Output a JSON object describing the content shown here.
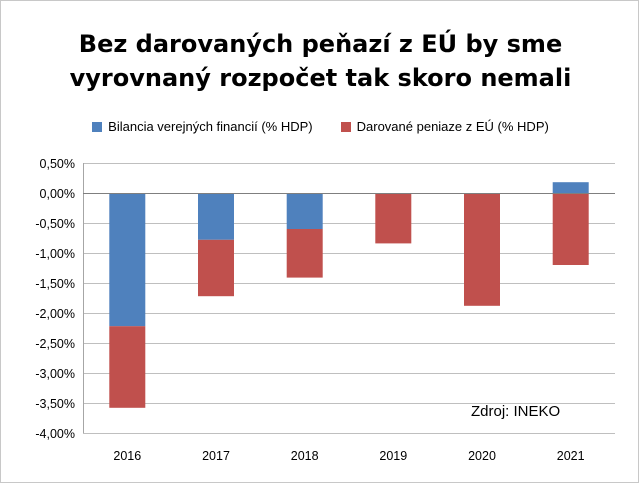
{
  "chart_data": {
    "type": "bar",
    "stacked": true,
    "title_lines": [
      "Bez darovaných peňazí z EÚ by sme",
      "vyrovnaný rozpočet tak skoro nemali"
    ],
    "categories": [
      "2016",
      "2017",
      "2018",
      "2019",
      "2020",
      "2021"
    ],
    "series": [
      {
        "name": "Bilancia verejných financií (% HDP)",
        "color": "#4f81bd",
        "values": [
          -2.22,
          -0.78,
          -0.6,
          0.0,
          0.0,
          0.18
        ]
      },
      {
        "name": "Darované peniaze z EÚ (% HDP)",
        "color": "#c0504d",
        "values": [
          -1.36,
          -0.94,
          -0.81,
          -0.84,
          -1.88,
          -1.2
        ]
      }
    ],
    "ylim": [
      -4.0,
      0.5
    ],
    "ytick_step": 0.5,
    "ytick_labels": [
      "0,50%",
      "0,00%",
      "-0,50%",
      "-1,00%",
      "-1,50%",
      "-2,00%",
      "-2,50%",
      "-3,00%",
      "-3,50%",
      "-4,00%"
    ],
    "grid": true,
    "legend_position": "top",
    "source_note": "Zdroj: INEKO"
  }
}
